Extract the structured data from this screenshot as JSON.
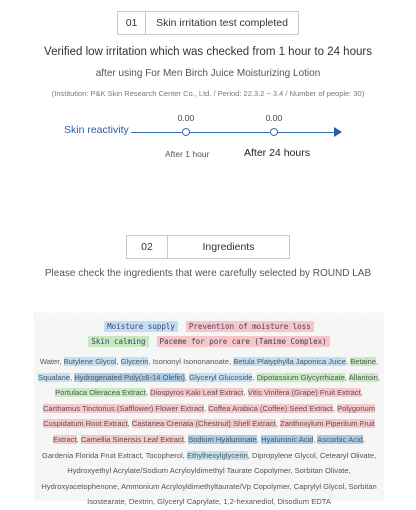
{
  "section1": {
    "num": "01",
    "title": "Skin irritation test completed"
  },
  "lines": {
    "l1": "Verified low irritation which was checked from 1 hour to 24 hours",
    "l2": "after using For Men Birch Juice Moisturizing Lotion",
    "l3": "(Institution: P&K Skin Research Center Co., Ltd. / Period: 22.3.2 ~ 3.4 / Number of people: 30)"
  },
  "reactivity": {
    "label": "Skin reactivity",
    "points": [
      {
        "value": "0.00",
        "time": "After 1 hour"
      },
      {
        "value": "0.00",
        "time": "After 24 hours"
      }
    ]
  },
  "section2": {
    "num": "02",
    "title": "Ingredients"
  },
  "ingredients_intro": "Please check the ingredients that were carefully selected by ROUND LAB",
  "legend": {
    "moisture": "Moisture supply",
    "prevention": "Prevention of moisture loss",
    "calming": "Skin calming",
    "pore": "Paceme for pore care (Tamime Complex)"
  },
  "colors": {
    "blue": "#c2e1f4",
    "green": "#c8ecc1",
    "pink": "#f6c8cb",
    "accent": "#2a5da8"
  },
  "ingredients": [
    {
      "t": "Water, ",
      "h": ""
    },
    {
      "t": "Butylene Glycol",
      "h": "blue"
    },
    {
      "t": ", ",
      "h": ""
    },
    {
      "t": "Glycerin",
      "h": "blue"
    },
    {
      "t": ", Isononyl Isononanoate, ",
      "h": ""
    },
    {
      "t": "Betula Platyphylla Japonica Juice",
      "h": "blue"
    },
    {
      "t": ", ",
      "h": ""
    },
    {
      "t": "Betaine",
      "h": "green"
    },
    {
      "t": ", ",
      "h": ""
    },
    {
      "t": "Squalane",
      "h": "blue"
    },
    {
      "t": ", ",
      "h": ""
    },
    {
      "t": "Hydrogenated Poly(c6-14 Olefin)",
      "h": "dblue"
    },
    {
      "t": ", ",
      "h": ""
    },
    {
      "t": "Glyceryl Glucoside",
      "h": "blue"
    },
    {
      "t": ", ",
      "h": ""
    },
    {
      "t": "Dipotassium Glycyrrhizate",
      "h": "green"
    },
    {
      "t": ", ",
      "h": ""
    },
    {
      "t": "Allantoin",
      "h": "green"
    },
    {
      "t": ", ",
      "h": ""
    },
    {
      "t": "Portulaca Oleracea Extract",
      "h": "green"
    },
    {
      "t": ", ",
      "h": ""
    },
    {
      "t": "Diospyros Kaki Leaf Extract",
      "h": "pink"
    },
    {
      "t": ", ",
      "h": ""
    },
    {
      "t": "Vitis Vinifera (Grape) Fruit Extract",
      "h": "pink"
    },
    {
      "t": ", ",
      "h": ""
    },
    {
      "t": "Carthamus Tinctorius (Safflower) Flower Extract",
      "h": "pink"
    },
    {
      "t": ", ",
      "h": ""
    },
    {
      "t": "Coffea Arabica (Coffee) Seed Extract",
      "h": "pink"
    },
    {
      "t": ", ",
      "h": ""
    },
    {
      "t": "Polygonum Cuspidatum Root Extract",
      "h": "pink"
    },
    {
      "t": ", ",
      "h": ""
    },
    {
      "t": "Castanea Crenata (Chestnut) Shell Extract",
      "h": "pink"
    },
    {
      "t": ", ",
      "h": ""
    },
    {
      "t": "Zanthoxylum Piperitum Fruit Extract",
      "h": "pink"
    },
    {
      "t": ", ",
      "h": ""
    },
    {
      "t": "Camellia Sinensis Leaf Extract",
      "h": "pink"
    },
    {
      "t": ", ",
      "h": ""
    },
    {
      "t": "Sodium Hyaluronate",
      "h": "dblue"
    },
    {
      "t": ", ",
      "h": ""
    },
    {
      "t": "Hyaluronic Acid",
      "h": "dblue"
    },
    {
      "t": ", ",
      "h": ""
    },
    {
      "t": "Ascorbic Acid",
      "h": "dblue"
    },
    {
      "t": ", Gardenia Florida Fruit Extract, Tocopherol, ",
      "h": ""
    },
    {
      "t": "Ethylhexylglycerin",
      "h": "blue"
    },
    {
      "t": ", Dipropylene Glycol, Cetearyl Olivate, Hydroxyethyl Acrylate/Sodium Acryloyldimethyl Taurate Copolymer, Sorbitan Olivate, Hydroxyacetophenone, Ammonium Acryloyldimethyltaurate/Vp Copolymer, Caprylyl Glycol, Sorbitan Isostearate, Dextrin, Glyceryl Caprylate, 1,2-hexanediol, Disodium EDTA",
      "h": ""
    }
  ]
}
